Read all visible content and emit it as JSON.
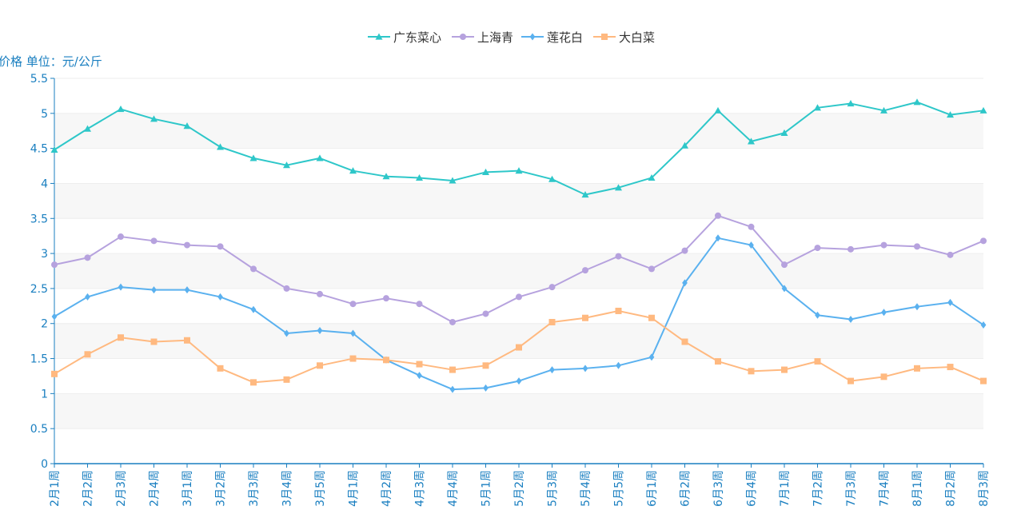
{
  "chart_data": {
    "type": "line",
    "title": "",
    "xlabel": "",
    "ylabel": "价格 单位：元/公斤",
    "ylim": [
      0,
      5.5
    ],
    "yticks": [
      0,
      0.5,
      1,
      1.5,
      2,
      2.5,
      3,
      3.5,
      4,
      4.5,
      5,
      5.5
    ],
    "ytick_labels": [
      "0",
      "0.5",
      "1",
      "1.5",
      "2",
      "2.5",
      "3",
      "3.5",
      "4",
      "4.5",
      "5",
      "5.5"
    ],
    "grid": "horizontal, alternating bands",
    "legend_position": "top-center",
    "categories": [
      "2月1周",
      "2月2周",
      "2月3周",
      "2月4周",
      "3月1周",
      "3月2周",
      "3月3周",
      "3月4周",
      "3月5周",
      "4月1周",
      "4月2周",
      "4月3周",
      "4月4周",
      "5月1周",
      "5月2周",
      "5月3周",
      "5月4周",
      "5月5周",
      "6月1周",
      "6月2周",
      "6月3周",
      "6月4周",
      "7月1周",
      "7月2周",
      "7月3周",
      "7月4周",
      "8月1周",
      "8月2周",
      "8月3周"
    ],
    "series": [
      {
        "name": "广东菜心",
        "color": "#2ec7c9",
        "marker": "triangle",
        "values": [
          4.48,
          4.78,
          5.06,
          4.92,
          4.82,
          4.52,
          4.36,
          4.26,
          4.36,
          4.18,
          4.1,
          4.08,
          4.04,
          4.16,
          4.18,
          4.06,
          3.84,
          3.94,
          4.08,
          4.54,
          5.04,
          4.6,
          4.72,
          5.08,
          5.14,
          5.04,
          5.16,
          4.98,
          5.04
        ]
      },
      {
        "name": "上海青",
        "color": "#b6a2de",
        "marker": "circle",
        "values": [
          2.84,
          2.94,
          3.24,
          3.18,
          3.12,
          3.1,
          2.78,
          2.5,
          2.42,
          2.28,
          2.36,
          2.28,
          2.02,
          2.14,
          2.38,
          2.52,
          2.76,
          2.96,
          2.78,
          3.04,
          3.54,
          3.38,
          2.84,
          3.08,
          3.06,
          3.12,
          3.1,
          2.98,
          3.18
        ]
      },
      {
        "name": "莲花白",
        "color": "#5ab1ef",
        "marker": "diamond",
        "values": [
          2.1,
          2.38,
          2.52,
          2.48,
          2.48,
          2.38,
          2.2,
          1.86,
          1.9,
          1.86,
          1.48,
          1.26,
          1.06,
          1.08,
          1.18,
          1.34,
          1.36,
          1.4,
          1.52,
          2.58,
          3.22,
          3.12,
          2.5,
          2.12,
          2.06,
          2.16,
          2.24,
          2.3,
          1.98
        ]
      },
      {
        "name": "大白菜",
        "color": "#ffb980",
        "marker": "square",
        "values": [
          1.28,
          1.56,
          1.8,
          1.74,
          1.76,
          1.36,
          1.16,
          1.2,
          1.4,
          1.5,
          1.48,
          1.42,
          1.34,
          1.4,
          1.66,
          2.02,
          2.08,
          2.18,
          2.08,
          1.74,
          1.46,
          1.32,
          1.34,
          1.46,
          1.18,
          1.24,
          1.36,
          1.38,
          1.18
        ]
      }
    ]
  },
  "colors": {
    "axis": "#1a7fc0",
    "grid": "#eeeeee",
    "band": "#f7f7f7"
  }
}
